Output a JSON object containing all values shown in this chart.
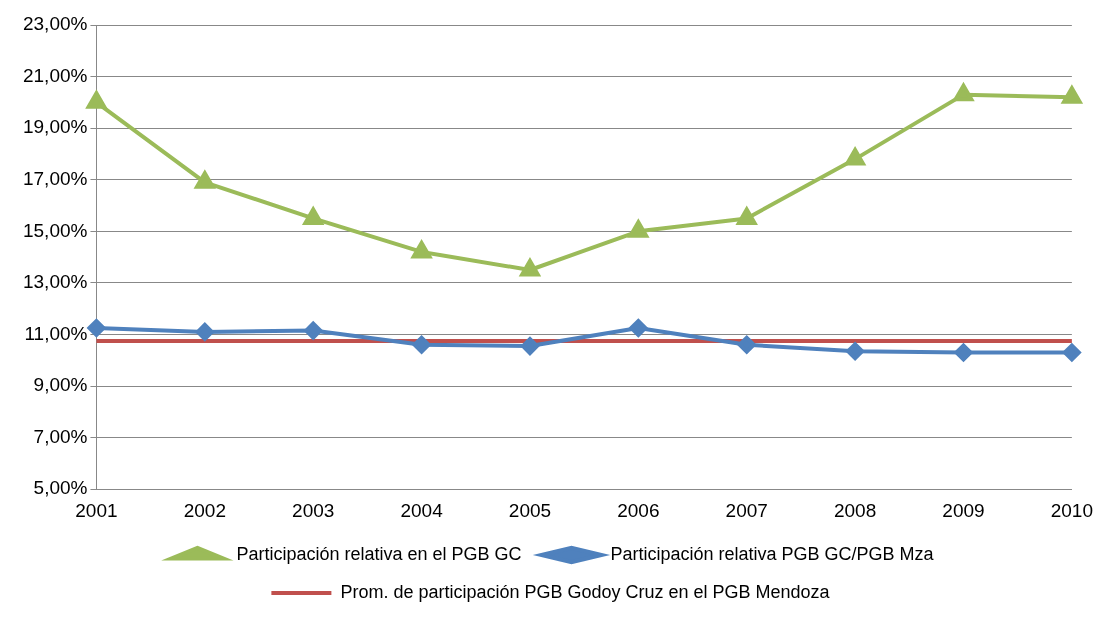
{
  "chart_data": {
    "type": "line",
    "categories": [
      "2001",
      "2002",
      "2003",
      "2004",
      "2005",
      "2006",
      "2007",
      "2008",
      "2009",
      "2010"
    ],
    "series": [
      {
        "name": "Participación relativa en el PGB GC",
        "color": "#9bbb59",
        "marker": "triangle",
        "values": [
          20.0,
          16.9,
          15.5,
          14.2,
          13.5,
          15.0,
          15.5,
          17.8,
          20.3,
          20.2
        ]
      },
      {
        "name": "Participación relativa PGB GC/PGB Mza",
        "color": "#4f81bd",
        "marker": "diamond",
        "values": [
          11.25,
          11.1,
          11.15,
          10.6,
          10.55,
          11.25,
          10.6,
          10.35,
          10.3,
          10.3
        ]
      },
      {
        "name": "Prom. de participación PGB Godoy Cruz en el PGB Mendoza",
        "color": "#c0504d",
        "marker": "none",
        "values": [
          10.75,
          10.75,
          10.75,
          10.75,
          10.75,
          10.75,
          10.75,
          10.75,
          10.75,
          10.75
        ]
      }
    ],
    "ylim": [
      5,
      23
    ],
    "yticks": [
      {
        "value": 5,
        "label": "5,00%"
      },
      {
        "value": 7,
        "label": "7,00%"
      },
      {
        "value": 9,
        "label": "9,00%"
      },
      {
        "value": 11,
        "label": "11,00%"
      },
      {
        "value": 13,
        "label": "13,00%"
      },
      {
        "value": 15,
        "label": "15,00%"
      },
      {
        "value": 17,
        "label": "17,00%"
      },
      {
        "value": 19,
        "label": "19,00%"
      },
      {
        "value": 21,
        "label": "21,00%"
      },
      {
        "value": 23,
        "label": "23,00%"
      }
    ],
    "grid": "y",
    "legend": "bottom",
    "line_style": "solid"
  }
}
